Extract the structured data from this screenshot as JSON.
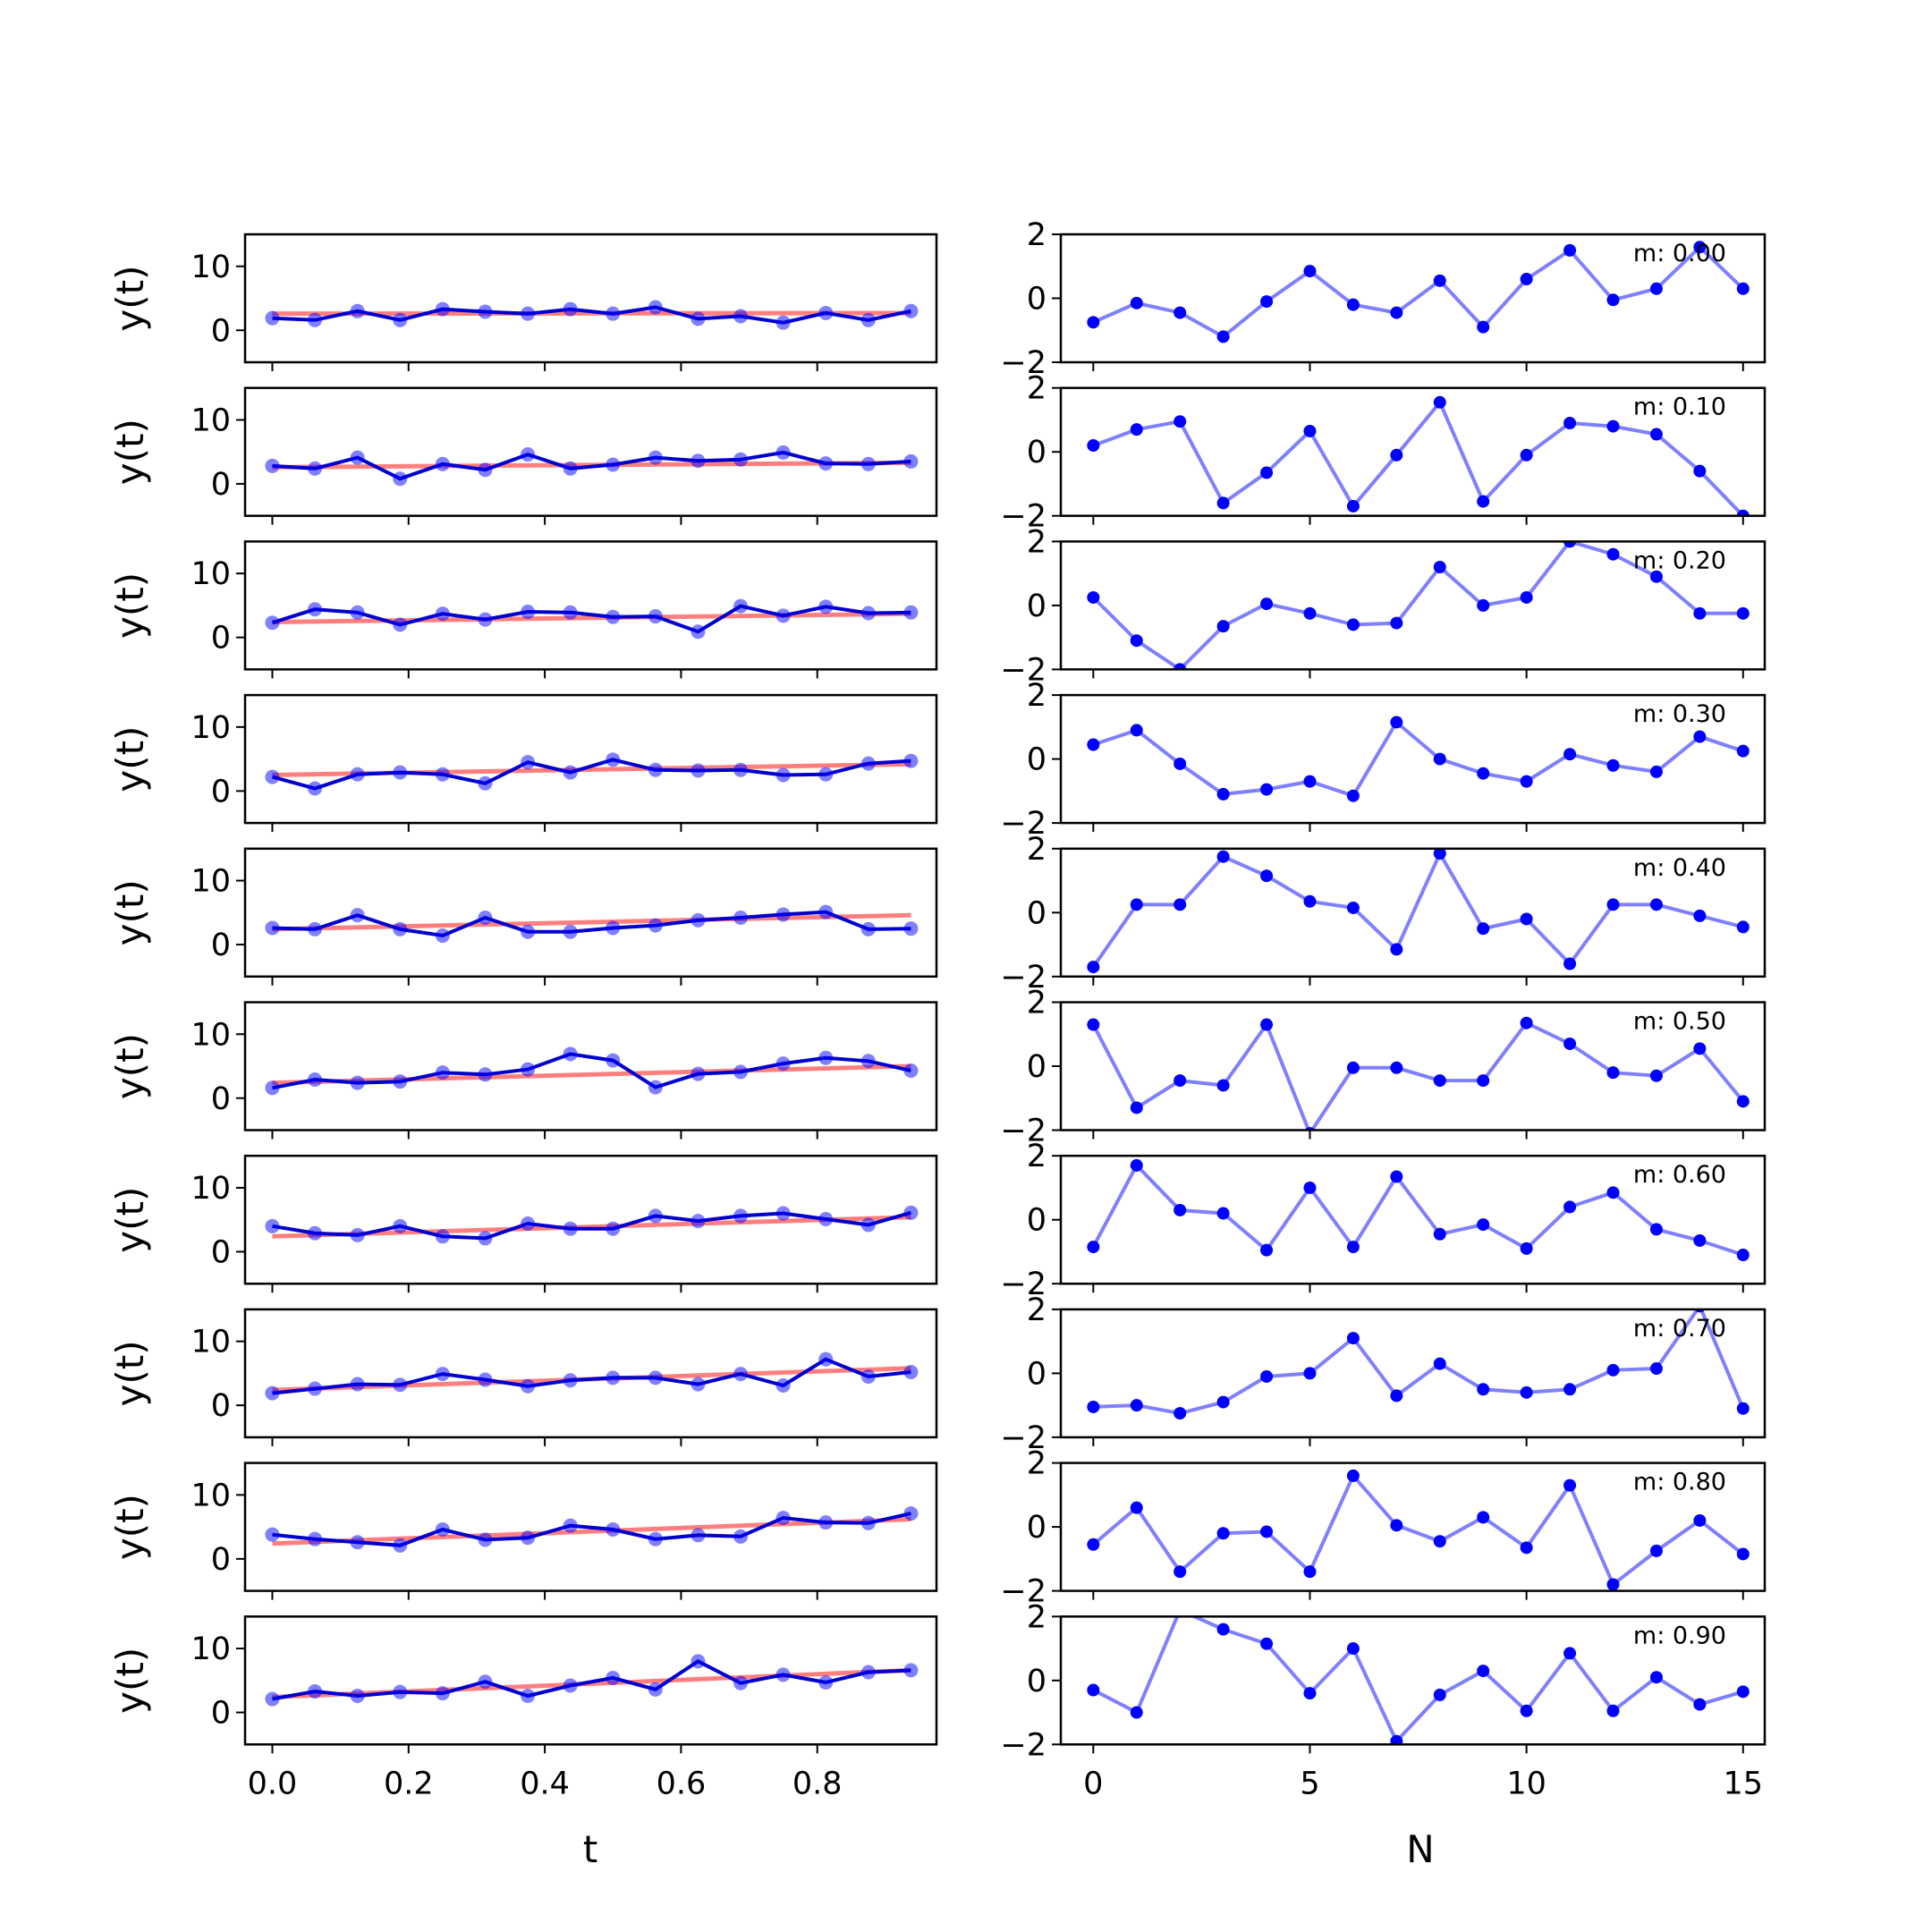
{
  "colors": {
    "trend": "#ff0000",
    "data_line": "#0000cd",
    "resid": "#0000ff",
    "axes": "#000000",
    "background": "#ffffff"
  },
  "chart_data": [
    {
      "type": "line",
      "panel": "left",
      "title": "",
      "xlabel": "t",
      "ylabel": "y(t)",
      "xlim": [
        -0.04,
        0.975
      ],
      "ylim": [
        -5,
        15
      ],
      "x_tick_labels": [
        "0.0",
        "0.2",
        "0.4",
        "0.6",
        "0.8"
      ],
      "x_ticks": [
        0.0,
        0.2,
        0.4,
        0.6,
        0.8
      ],
      "y_tick_labels": [
        "0",
        "10"
      ],
      "y_ticks": [
        0,
        10
      ],
      "x": [
        0,
        0.0625,
        0.125,
        0.1875,
        0.25,
        0.3125,
        0.375,
        0.4375,
        0.5,
        0.5625,
        0.625,
        0.6875,
        0.75,
        0.8125,
        0.875,
        0.9375
      ],
      "rows": [
        {
          "trend": [
            2.6,
            2.7
          ],
          "y": [
            1.9,
            1.6,
            3.0,
            1.6,
            3.3,
            2.9,
            2.6,
            3.3,
            2.6,
            3.6,
            1.8,
            2.2,
            1.2,
            2.7,
            1.6,
            3.0
          ]
        },
        {
          "trend": [
            2.6,
            3.3
          ],
          "y": [
            2.8,
            2.4,
            4.1,
            0.8,
            3.1,
            2.2,
            4.6,
            2.4,
            3.0,
            4.1,
            3.6,
            3.8,
            4.9,
            3.2,
            3.1,
            3.5
          ]
        },
        {
          "trend": [
            2.4,
            3.7
          ],
          "y": [
            2.3,
            4.4,
            3.9,
            2.0,
            3.7,
            2.8,
            4.0,
            3.9,
            3.2,
            3.3,
            0.9,
            4.9,
            3.4,
            4.8,
            3.8,
            3.9
          ]
        },
        {
          "trend": [
            2.5,
            4.2
          ],
          "y": [
            2.2,
            0.4,
            2.6,
            2.9,
            2.6,
            1.2,
            4.5,
            2.9,
            4.9,
            3.3,
            3.2,
            3.3,
            2.5,
            2.6,
            4.3,
            4.7
          ]
        },
        {
          "trend": [
            2.4,
            4.6
          ],
          "y": [
            2.6,
            2.4,
            4.6,
            2.4,
            1.4,
            4.2,
            2.0,
            2.0,
            2.6,
            3.0,
            3.8,
            4.2,
            4.7,
            5.1,
            2.4,
            2.5
          ]
        },
        {
          "trend": [
            2.4,
            5.0
          ],
          "y": [
            1.6,
            2.9,
            2.4,
            2.6,
            4.0,
            3.7,
            4.5,
            6.9,
            5.9,
            1.7,
            3.8,
            4.1,
            5.4,
            6.3,
            5.8,
            4.3
          ]
        },
        {
          "trend": [
            2.4,
            5.4
          ],
          "y": [
            4.0,
            2.9,
            2.6,
            4.0,
            2.4,
            2.1,
            4.4,
            3.6,
            3.6,
            5.6,
            4.8,
            5.6,
            6.0,
            5.1,
            4.2,
            6.1
          ]
        },
        {
          "trend": [
            2.4,
            5.8
          ],
          "y": [
            1.9,
            2.6,
            3.3,
            3.2,
            4.9,
            4.0,
            3.0,
            3.9,
            4.3,
            4.3,
            3.3,
            4.9,
            3.1,
            7.2,
            4.5,
            5.2
          ]
        },
        {
          "trend": [
            2.4,
            6.2
          ],
          "y": [
            3.8,
            3.1,
            2.6,
            2.1,
            4.6,
            3.0,
            3.3,
            5.2,
            4.6,
            3.1,
            3.7,
            3.5,
            6.4,
            5.7,
            5.6,
            7.1
          ]
        },
        {
          "trend": [
            2.4,
            6.6
          ],
          "y": [
            2.1,
            3.3,
            2.6,
            3.2,
            3.0,
            4.8,
            2.6,
            4.2,
            5.4,
            3.6,
            8.0,
            4.6,
            5.9,
            4.7,
            6.3,
            6.6
          ]
        }
      ]
    },
    {
      "type": "line",
      "panel": "right",
      "title": "",
      "xlabel": "N",
      "ylabel": "",
      "xlim": [
        -0.75,
        15.5
      ],
      "ylim": [
        -2,
        2
      ],
      "x_tick_labels": [
        "0",
        "5",
        "10",
        "15"
      ],
      "x_ticks": [
        0,
        5,
        10,
        15
      ],
      "y_tick_labels": [
        "−2",
        "0",
        "2"
      ],
      "y_ticks": [
        -2,
        0,
        2
      ],
      "x": [
        0,
        1,
        2,
        3,
        4,
        5,
        6,
        7,
        8,
        9,
        10,
        11,
        12,
        13,
        14,
        15
      ],
      "rows": [
        {
          "label": "m: 0.00",
          "values": [
            -0.75,
            -0.15,
            -0.45,
            -1.2,
            -0.1,
            0.85,
            -0.2,
            -0.45,
            0.55,
            -0.9,
            0.6,
            1.5,
            -0.05,
            0.3,
            1.6,
            0.3
          ]
        },
        {
          "label": "m: 0.10",
          "values": [
            0.2,
            0.7,
            0.95,
            -1.6,
            -0.65,
            0.65,
            -1.7,
            -0.1,
            1.55,
            -1.55,
            -0.1,
            0.9,
            0.8,
            0.55,
            -0.6,
            -2.0
          ]
        },
        {
          "label": "m: 0.20",
          "values": [
            0.25,
            -1.1,
            -2.0,
            -0.65,
            0.05,
            -0.25,
            -0.6,
            -0.55,
            1.2,
            0.0,
            0.25,
            2.0,
            1.6,
            0.9,
            -0.25,
            -0.25
          ]
        },
        {
          "label": "m: 0.30",
          "values": [
            0.45,
            0.9,
            -0.15,
            -1.1,
            -0.95,
            -0.7,
            -1.15,
            1.15,
            0.0,
            -0.45,
            -0.7,
            0.15,
            -0.2,
            -0.4,
            0.7,
            0.25
          ]
        },
        {
          "label": "m: 0.40",
          "values": [
            -1.7,
            0.25,
            0.25,
            1.75,
            1.15,
            0.35,
            0.15,
            -1.15,
            1.85,
            -0.5,
            -0.2,
            -1.6,
            0.25,
            0.25,
            -0.1,
            -0.45
          ]
        },
        {
          "label": "m: 0.50",
          "values": [
            1.3,
            -1.3,
            -0.45,
            -0.6,
            1.3,
            -2.1,
            -0.05,
            -0.05,
            -0.45,
            -0.45,
            1.35,
            0.7,
            -0.2,
            -0.3,
            0.55,
            -1.1
          ]
        },
        {
          "label": "m: 0.60",
          "values": [
            -0.85,
            1.7,
            0.3,
            0.2,
            -0.95,
            1.0,
            -0.85,
            1.35,
            -0.45,
            -0.15,
            -0.9,
            0.4,
            0.85,
            -0.3,
            -0.65,
            -1.1
          ]
        },
        {
          "label": "m: 0.70",
          "values": [
            -1.05,
            -1.0,
            -1.25,
            -0.9,
            -0.1,
            0.0,
            1.1,
            -0.7,
            0.3,
            -0.5,
            -0.6,
            -0.5,
            0.1,
            0.15,
            2.1,
            -1.1
          ]
        },
        {
          "label": "m: 0.80",
          "values": [
            -0.55,
            0.6,
            -1.4,
            -0.2,
            -0.15,
            -1.4,
            1.6,
            0.05,
            -0.45,
            0.3,
            -0.65,
            1.3,
            -1.8,
            -0.75,
            0.2,
            -0.85
          ]
        },
        {
          "label": "m: 0.90",
          "values": [
            -0.3,
            -1.0,
            2.2,
            1.6,
            1.15,
            -0.4,
            1.0,
            -1.9,
            -0.45,
            0.3,
            -0.95,
            0.85,
            -0.95,
            0.1,
            -0.75,
            -0.35
          ]
        }
      ]
    }
  ]
}
